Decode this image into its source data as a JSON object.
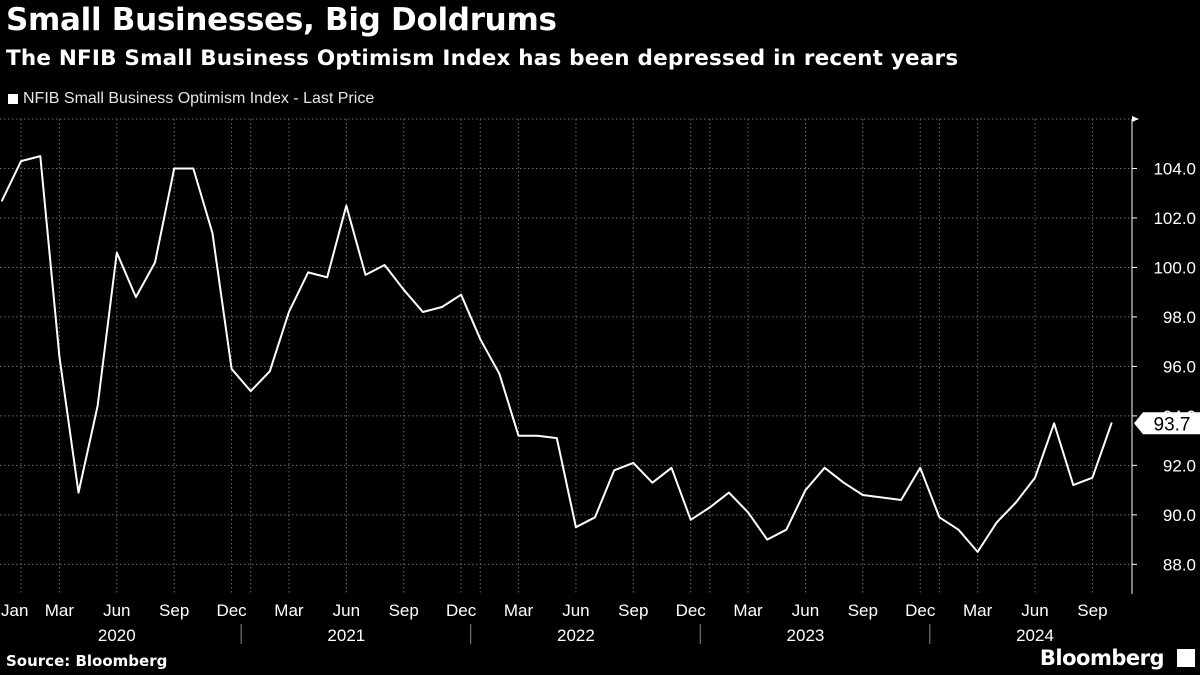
{
  "header": {
    "title": "Small Businesses, Big Doldrums",
    "subtitle": "The NFIB Small Business Optimism Index has been depressed in recent years"
  },
  "legend": {
    "label": "NFIB Small Business Optimism Index - Last Price"
  },
  "footer": {
    "source": "Source: Bloomberg",
    "brand": "Bloomberg",
    "brand_icon": "bloomberg-terminal-icon"
  },
  "colors": {
    "background": "#000000",
    "line": "#ffffff",
    "grid": "#6b6b6b",
    "text": "#ffffff"
  },
  "chart_data": {
    "type": "line",
    "x": [
      "2019-12",
      "2020-01",
      "2020-02",
      "2020-03",
      "2020-04",
      "2020-05",
      "2020-06",
      "2020-07",
      "2020-08",
      "2020-09",
      "2020-10",
      "2020-11",
      "2020-12",
      "2021-01",
      "2021-02",
      "2021-03",
      "2021-04",
      "2021-05",
      "2021-06",
      "2021-07",
      "2021-08",
      "2021-09",
      "2021-10",
      "2021-11",
      "2021-12",
      "2022-01",
      "2022-02",
      "2022-03",
      "2022-04",
      "2022-05",
      "2022-06",
      "2022-07",
      "2022-08",
      "2022-09",
      "2022-10",
      "2022-11",
      "2022-12",
      "2023-01",
      "2023-02",
      "2023-03",
      "2023-04",
      "2023-05",
      "2023-06",
      "2023-07",
      "2023-08",
      "2023-09",
      "2023-10",
      "2023-11",
      "2023-12",
      "2024-01",
      "2024-02",
      "2024-03",
      "2024-04",
      "2024-05",
      "2024-06",
      "2024-07",
      "2024-08",
      "2024-09",
      "2024-10"
    ],
    "series": [
      {
        "name": "NFIB Small Business Optimism Index - Last Price",
        "values": [
          102.7,
          104.3,
          104.5,
          96.4,
          90.9,
          94.4,
          100.6,
          98.8,
          100.2,
          104.0,
          104.0,
          101.4,
          95.9,
          95.0,
          95.8,
          98.2,
          99.8,
          99.6,
          102.5,
          99.7,
          100.1,
          99.1,
          98.2,
          98.4,
          98.9,
          97.1,
          95.7,
          93.2,
          93.2,
          93.1,
          89.5,
          89.9,
          91.8,
          92.1,
          91.3,
          91.9,
          89.8,
          90.3,
          90.9,
          90.1,
          89.0,
          89.4,
          91.0,
          91.9,
          91.3,
          90.8,
          90.7,
          90.6,
          91.9,
          89.9,
          89.4,
          88.5,
          89.7,
          90.5,
          91.5,
          93.7,
          91.2,
          91.5,
          93.7
        ]
      }
    ],
    "last_value_label": "93.7",
    "x_tick_labels": [
      "Jan",
      "Mar",
      "Jun",
      "Sep",
      "Dec",
      "Mar",
      "Jun",
      "Sep",
      "Dec",
      "Mar",
      "Jun",
      "Sep",
      "Dec",
      "Mar",
      "Jun",
      "Sep",
      "Dec",
      "Mar",
      "Jun",
      "Sep"
    ],
    "x_tick_months": [
      "2020-01",
      "2020-03",
      "2020-06",
      "2020-09",
      "2020-12",
      "2021-03",
      "2021-06",
      "2021-09",
      "2021-12",
      "2022-03",
      "2022-06",
      "2022-09",
      "2022-12",
      "2023-03",
      "2023-06",
      "2023-09",
      "2023-12",
      "2024-03",
      "2024-06",
      "2024-09"
    ],
    "year_labels": [
      {
        "label": "2020",
        "center": "2020-06"
      },
      {
        "label": "2021",
        "center": "2021-06"
      },
      {
        "label": "2022",
        "center": "2022-06"
      },
      {
        "label": "2023",
        "center": "2023-06"
      },
      {
        "label": "2024",
        "center": "2024-06"
      }
    ],
    "year_boundaries": [
      "2020-12",
      "2021-12",
      "2022-12",
      "2023-12"
    ],
    "y_ticks": [
      88.0,
      90.0,
      92.0,
      94.0,
      96.0,
      98.0,
      100.0,
      102.0,
      104.0
    ],
    "y_tick_labels": [
      "88.0",
      "90.0",
      "92.0",
      "94.0",
      "96.0",
      "98.0",
      "100.0",
      "102.0",
      "104.0"
    ],
    "ylim": [
      86.8,
      106.0
    ],
    "y_axis_side": "right",
    "grid": true,
    "legend_position": "top-left",
    "title": "Small Businesses, Big Doldrums",
    "xlabel": "",
    "ylabel": ""
  }
}
